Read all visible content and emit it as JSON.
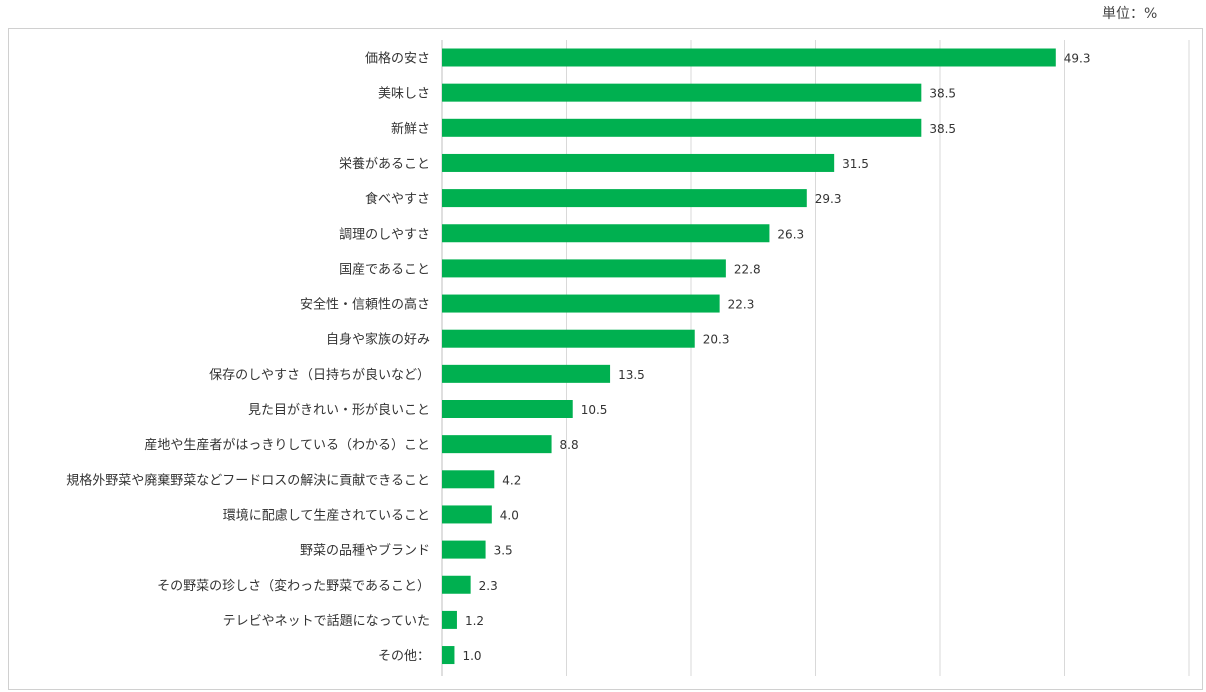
{
  "unit_label": "単位：%",
  "chart_data": {
    "type": "bar",
    "orientation": "horizontal",
    "categories": [
      "価格の安さ",
      "美味しさ",
      "新鮮さ",
      "栄養があること",
      "食べやすさ",
      "調理のしやすさ",
      "国産であること",
      "安全性・信頼性の高さ",
      "自身や家族の好み",
      "保存のしやすさ（日持ちが良いなど）",
      "見た目がきれい・形が良いこと",
      "産地や生産者がはっきりしている（わかる）こと",
      "規格外野菜や廃棄野菜などフードロスの解決に貢献できること",
      "環境に配慮して生産されていること",
      "野菜の品種やブランド",
      "その野菜の珍しさ（変わった野菜であること）",
      "テレビやネットで話題になっていた",
      "その他："
    ],
    "values": [
      49.3,
      38.5,
      38.5,
      31.5,
      29.3,
      26.3,
      22.8,
      22.3,
      20.3,
      13.5,
      10.5,
      8.8,
      4.2,
      4.0,
      3.5,
      2.3,
      1.2,
      1.0
    ],
    "value_labels": [
      "49.3",
      "38.5",
      "38.5",
      "31.5",
      "29.3",
      "26.3",
      "22.8",
      "22.3",
      "20.3",
      "13.5",
      "10.5",
      "8.8",
      "4.2",
      "4.0",
      "3.5",
      "2.3",
      "1.2",
      "1.0"
    ],
    "xlim": [
      0,
      60
    ],
    "grid": true,
    "bar_color": "#00b050",
    "grid_color": "#d9d9d9"
  }
}
